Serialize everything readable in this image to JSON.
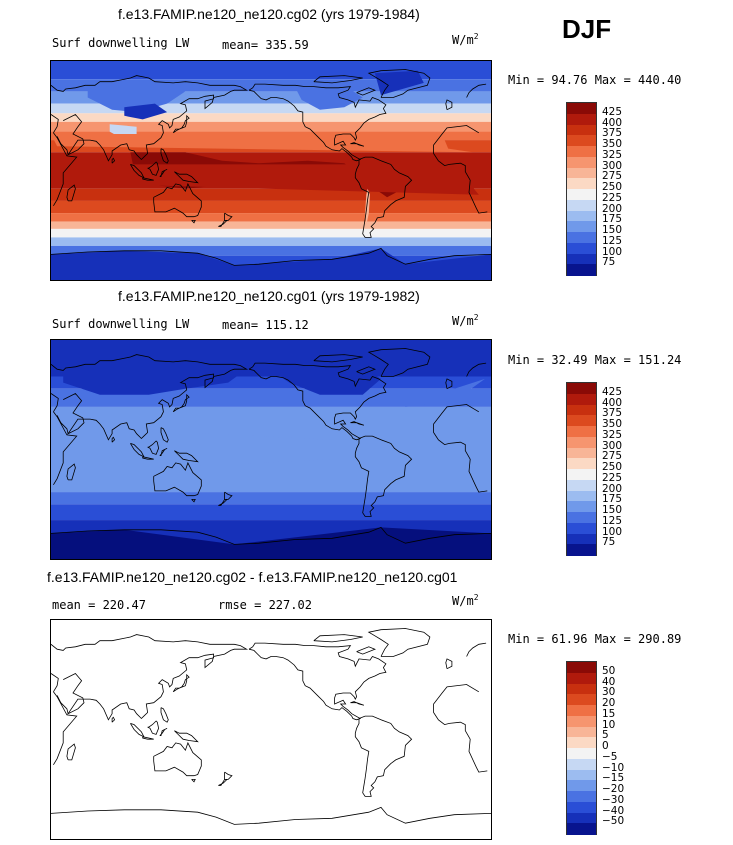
{
  "season": "DJF",
  "panels": [
    {
      "title": "f.e13.FAMIP.ne120_ne120.cg02 (yrs 1979-1984)",
      "left_label": "Surf downwelling LW",
      "center_label": "mean= 335.59",
      "units": "W/m",
      "units_sup": "2",
      "minmax": "Min =  94.76 Max = 440.40",
      "field": "model",
      "levels": [
        "425",
        "400",
        "375",
        "350",
        "325",
        "300",
        "275",
        "250",
        "225",
        "200",
        "175",
        "150",
        "125",
        "100",
        "75"
      ]
    },
    {
      "title": "f.e13.FAMIP.ne120_ne120.cg01 (yrs 1979-1982)",
      "left_label": "Surf downwelling LW",
      "center_label": "mean= 115.12",
      "units": "W/m",
      "units_sup": "2",
      "minmax": "Min =  32.49 Max = 151.24",
      "field": "control",
      "levels": [
        "425",
        "400",
        "375",
        "350",
        "325",
        "300",
        "275",
        "250",
        "225",
        "200",
        "175",
        "150",
        "125",
        "100",
        "75"
      ]
    },
    {
      "title": "f.e13.FAMIP.ne120_ne120.cg02 - f.e13.FAMIP.ne120_ne120.cg01",
      "left_label": "mean = 220.47",
      "center_label": "rmse = 227.02",
      "units": "W/m",
      "units_sup": "2",
      "minmax": "Min =  61.96 Max = 290.89",
      "field": "difference",
      "levels": [
        "50",
        "40",
        "30",
        "20",
        "15",
        "10",
        "5",
        "0",
        "−5",
        "−10",
        "−15",
        "−20",
        "−30",
        "−40",
        "−50"
      ]
    }
  ],
  "chart_data": [
    {
      "type": "heatmap",
      "title": "f.e13.FAMIP.ne120_ne120.cg02 (yrs 1979-1984)",
      "variable": "Surf downwelling LW",
      "units": "W/m2",
      "mean": 335.59,
      "min": 94.76,
      "max": 440.4,
      "contour_levels": [
        75,
        100,
        125,
        150,
        175,
        200,
        225,
        250,
        275,
        300,
        325,
        350,
        375,
        400,
        425
      ]
    },
    {
      "type": "heatmap",
      "title": "f.e13.FAMIP.ne120_ne120.cg01 (yrs 1979-1982)",
      "variable": "Surf downwelling LW",
      "units": "W/m2",
      "mean": 115.12,
      "min": 32.49,
      "max": 151.24,
      "contour_levels": [
        75,
        100,
        125,
        150,
        175,
        200,
        225,
        250,
        275,
        300,
        325,
        350,
        375,
        400,
        425
      ]
    },
    {
      "type": "heatmap",
      "title": "f.e13.FAMIP.ne120_ne120.cg02 - f.e13.FAMIP.ne120_ne120.cg01",
      "variable": "difference",
      "units": "W/m2",
      "mean": 220.47,
      "rmse": 227.02,
      "min": 61.96,
      "max": 290.89,
      "contour_levels": [
        -50,
        -40,
        -30,
        -20,
        -15,
        -10,
        -5,
        0,
        5,
        10,
        15,
        20,
        30,
        40,
        50
      ]
    }
  ],
  "colors": {
    "scale": [
      "#8a0a06",
      "#b01a0c",
      "#c8300f",
      "#dc4a1f",
      "#ef7044",
      "#f6956f",
      "#f8b597",
      "#fbd9c4",
      "#f3f3f3",
      "#c6d8f3",
      "#9cbcf0",
      "#7099ea",
      "#4a72e2",
      "#2a4ed6",
      "#1630b9",
      "#08148e"
    ]
  }
}
